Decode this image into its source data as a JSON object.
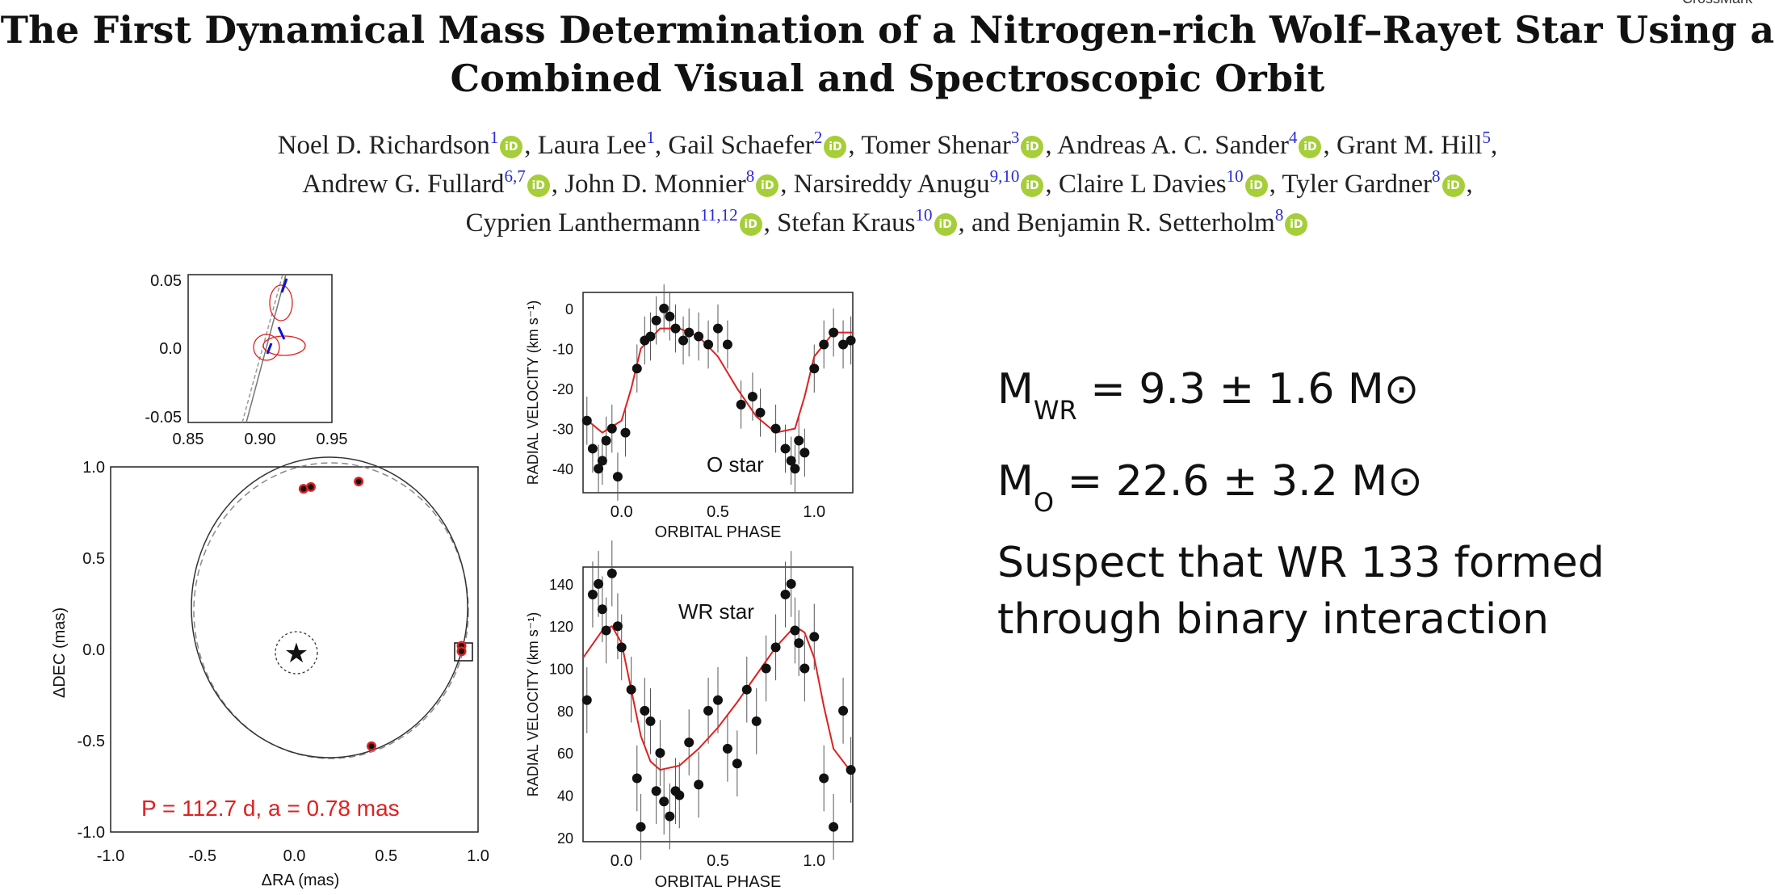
{
  "paper": {
    "title_line1": "The First Dynamical Mass Determination of a Nitrogen-rich Wolf–Rayet Star Using a",
    "title_line2": "Combined Visual and Spectroscopic Orbit",
    "crossmark": "CrossMark",
    "authors_line1": [
      {
        "name": "Noel D. Richardson",
        "aff": "1",
        "orcid": true,
        "sep": ", "
      },
      {
        "name": "Laura Lee",
        "aff": "1",
        "orcid": false,
        "sep": ", "
      },
      {
        "name": "Gail Schaefer",
        "aff": "2",
        "orcid": true,
        "sep": ", "
      },
      {
        "name": "Tomer Shenar",
        "aff": "3",
        "orcid": true,
        "sep": ", "
      },
      {
        "name": "Andreas A. C. Sander",
        "aff": "4",
        "orcid": true,
        "sep": ", "
      },
      {
        "name": "Grant M. Hill",
        "aff": "5",
        "orcid": false,
        "sep": ","
      }
    ],
    "authors_line2": [
      {
        "name": "Andrew G. Fullard",
        "aff": "6,7",
        "orcid": true,
        "sep": ", "
      },
      {
        "name": "John D. Monnier",
        "aff": "8",
        "orcid": true,
        "sep": ", "
      },
      {
        "name": "Narsireddy Anugu",
        "aff": "9,10",
        "orcid": true,
        "sep": ", "
      },
      {
        "name": "Claire L Davies",
        "aff": "10",
        "orcid": true,
        "sep": ", "
      },
      {
        "name": "Tyler Gardner",
        "aff": "8",
        "orcid": true,
        "sep": ","
      }
    ],
    "authors_line3": [
      {
        "name": "Cyprien Lanthermann",
        "aff": "11,12",
        "orcid": true,
        "sep": ", "
      },
      {
        "name": "Stefan Kraus",
        "aff": "10",
        "orcid": true,
        "sep": ", and "
      },
      {
        "name": "Benjamin R. Setterholm",
        "aff": "8",
        "orcid": true,
        "sep": ""
      }
    ],
    "orcid_icon_text": "iD"
  },
  "results": {
    "mwr_symbol": "M",
    "mwr_sub": "WR",
    "mwr_value": " = 9.3 ± 1.6 M",
    "mo_symbol": "M",
    "mo_sub": "O",
    "mo_value": " = 22.6 ± 3.2 M",
    "sun_symbol": "⊙",
    "conclusion": "Suspect that WR 133 formed through binary interaction"
  },
  "colors": {
    "orbit_red": "#e02020",
    "orcid_green": "#a6ce39",
    "affil_blue": "#2a2ad8",
    "vector_blue": "#1010d0"
  },
  "chart_data": [
    {
      "type": "scatter",
      "id": "orbit_zoom",
      "xlim": [
        0.85,
        0.95
      ],
      "ylim": [
        -0.05,
        0.05
      ],
      "xticks": [
        "0.85",
        "0.90",
        "0.95"
      ],
      "yticks": [
        "0.05",
        "0.0",
        "-0.05"
      ],
      "points": [
        {
          "x": 0.914,
          "y": 0.028
        },
        {
          "x": 0.908,
          "y": 0.0
        },
        {
          "x": 0.912,
          "y": 0.007
        }
      ]
    },
    {
      "type": "scatter",
      "id": "visual_orbit",
      "xlabel": "ΔRA (mas)",
      "ylabel": "ΔDEC (mas)",
      "xlim": [
        -1.0,
        1.0
      ],
      "ylim": [
        -1.0,
        1.0
      ],
      "xticks": [
        "-1.0",
        "-0.5",
        "0.0",
        "0.5",
        "1.0"
      ],
      "yticks": [
        "1.0",
        "0.5",
        "0.0",
        "-0.5",
        "-1.0"
      ],
      "annotation": "P = 112.7 d, a = 0.78 mas",
      "points": [
        {
          "x": 0.05,
          "y": 0.88
        },
        {
          "x": 0.09,
          "y": 0.89
        },
        {
          "x": 0.35,
          "y": 0.92
        },
        {
          "x": 0.91,
          "y": 0.02
        },
        {
          "x": 0.91,
          "y": -0.01
        },
        {
          "x": 0.42,
          "y": -0.53
        }
      ]
    },
    {
      "type": "scatter",
      "id": "o_star_rv",
      "label": "O star",
      "xlabel": "ORBITAL PHASE",
      "ylabel": "RADIAL VELOCITY (km s⁻¹)",
      "xlim": [
        -0.2,
        1.2
      ],
      "ylim": [
        -46,
        4
      ],
      "xticks": [
        "0.0",
        "0.5",
        "1.0"
      ],
      "yticks": [
        "0",
        "-10",
        "-20",
        "-30",
        "-40"
      ],
      "curve": [
        [
          -0.2,
          -27
        ],
        [
          -0.1,
          -31
        ],
        [
          0.0,
          -28
        ],
        [
          0.05,
          -20
        ],
        [
          0.1,
          -10
        ],
        [
          0.2,
          -5
        ],
        [
          0.3,
          -5
        ],
        [
          0.4,
          -7
        ],
        [
          0.5,
          -12
        ],
        [
          0.6,
          -20
        ],
        [
          0.7,
          -27
        ],
        [
          0.8,
          -31
        ],
        [
          0.9,
          -30
        ],
        [
          0.95,
          -22
        ],
        [
          1.0,
          -12
        ],
        [
          1.1,
          -6
        ],
        [
          1.2,
          -6
        ]
      ],
      "points": [
        [
          -0.18,
          -28
        ],
        [
          -0.15,
          -35
        ],
        [
          -0.12,
          -40
        ],
        [
          -0.1,
          -38
        ],
        [
          -0.08,
          -33
        ],
        [
          -0.05,
          -30
        ],
        [
          -0.02,
          -42
        ],
        [
          0.02,
          -31
        ],
        [
          0.08,
          -15
        ],
        [
          0.12,
          -8
        ],
        [
          0.15,
          -7
        ],
        [
          0.18,
          -3
        ],
        [
          0.22,
          0
        ],
        [
          0.25,
          -2
        ],
        [
          0.28,
          -5
        ],
        [
          0.32,
          -8
        ],
        [
          0.35,
          -6
        ],
        [
          0.4,
          -7
        ],
        [
          0.45,
          -9
        ],
        [
          0.5,
          -5
        ],
        [
          0.55,
          -9
        ],
        [
          0.62,
          -24
        ],
        [
          0.68,
          -22
        ],
        [
          0.72,
          -26
        ],
        [
          0.8,
          -30
        ],
        [
          0.85,
          -35
        ],
        [
          0.88,
          -38
        ],
        [
          0.9,
          -40
        ],
        [
          0.92,
          -33
        ],
        [
          0.95,
          -36
        ],
        [
          1.0,
          -15
        ],
        [
          1.05,
          -9
        ],
        [
          1.1,
          -6
        ],
        [
          1.15,
          -9
        ],
        [
          1.19,
          -8
        ]
      ]
    },
    {
      "type": "scatter",
      "id": "wr_star_rv",
      "label": "WR star",
      "xlabel": "ORBITAL PHASE",
      "ylabel": "RADIAL VELOCITY (km s⁻¹)",
      "xlim": [
        -0.2,
        1.2
      ],
      "ylim": [
        18,
        148
      ],
      "xticks": [
        "0.0",
        "0.5",
        "1.0"
      ],
      "yticks": [
        "140",
        "120",
        "100",
        "80",
        "60",
        "40",
        "20"
      ],
      "curve": [
        [
          -0.2,
          105
        ],
        [
          -0.1,
          118
        ],
        [
          -0.05,
          120
        ],
        [
          0.0,
          112
        ],
        [
          0.05,
          90
        ],
        [
          0.1,
          68
        ],
        [
          0.15,
          56
        ],
        [
          0.2,
          52
        ],
        [
          0.3,
          54
        ],
        [
          0.4,
          62
        ],
        [
          0.5,
          72
        ],
        [
          0.6,
          84
        ],
        [
          0.7,
          97
        ],
        [
          0.8,
          110
        ],
        [
          0.9,
          120
        ],
        [
          0.95,
          117
        ],
        [
          1.0,
          105
        ],
        [
          1.05,
          82
        ],
        [
          1.1,
          62
        ],
        [
          1.2,
          50
        ]
      ],
      "points": [
        [
          -0.18,
          85
        ],
        [
          -0.15,
          135
        ],
        [
          -0.12,
          140
        ],
        [
          -0.1,
          128
        ],
        [
          -0.08,
          118
        ],
        [
          -0.05,
          145
        ],
        [
          -0.02,
          120
        ],
        [
          0.0,
          110
        ],
        [
          0.05,
          90
        ],
        [
          0.08,
          48
        ],
        [
          0.1,
          25
        ],
        [
          0.12,
          80
        ],
        [
          0.15,
          75
        ],
        [
          0.18,
          42
        ],
        [
          0.2,
          60
        ],
        [
          0.22,
          37
        ],
        [
          0.25,
          30
        ],
        [
          0.28,
          42
        ],
        [
          0.3,
          40
        ],
        [
          0.35,
          65
        ],
        [
          0.4,
          45
        ],
        [
          0.45,
          80
        ],
        [
          0.5,
          85
        ],
        [
          0.55,
          62
        ],
        [
          0.6,
          55
        ],
        [
          0.65,
          90
        ],
        [
          0.7,
          75
        ],
        [
          0.75,
          100
        ],
        [
          0.8,
          110
        ],
        [
          0.85,
          135
        ],
        [
          0.88,
          140
        ],
        [
          0.9,
          118
        ],
        [
          0.92,
          112
        ],
        [
          0.95,
          100
        ],
        [
          1.0,
          115
        ],
        [
          1.05,
          48
        ],
        [
          1.1,
          25
        ],
        [
          1.15,
          80
        ],
        [
          1.19,
          52
        ]
      ]
    }
  ]
}
